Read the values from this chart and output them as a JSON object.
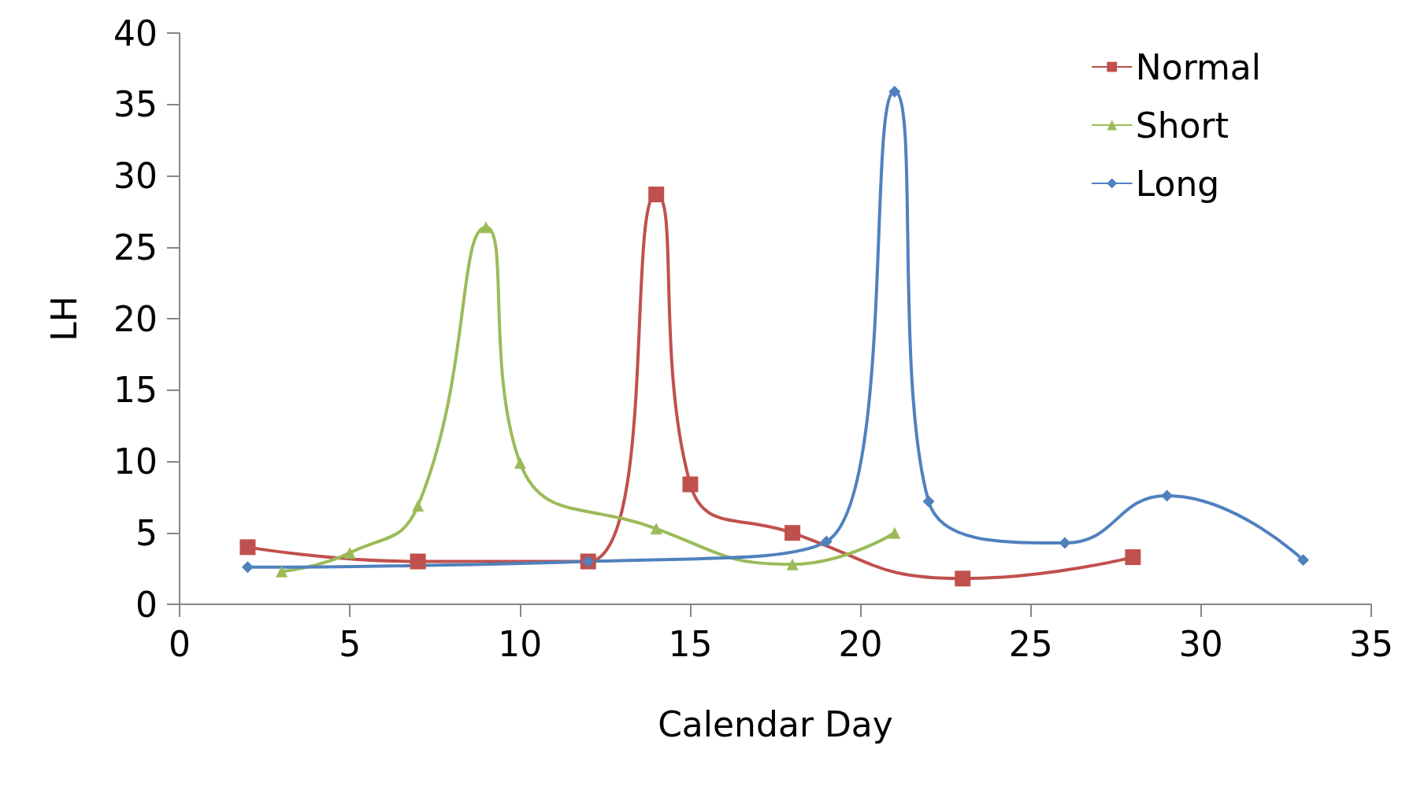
{
  "chart_data": {
    "type": "line",
    "xlabel": "Calendar Day",
    "ylabel": "LH",
    "xlim": [
      0,
      35
    ],
    "xticks": [
      0,
      5,
      10,
      15,
      20,
      25,
      30,
      35
    ],
    "ylim": [
      0,
      40
    ],
    "yticks": [
      0,
      5,
      10,
      15,
      20,
      25,
      30,
      35,
      40
    ],
    "grid": false,
    "legend": "top right",
    "line_style": "solid",
    "series": [
      {
        "name": "Normal",
        "color": "#c0504d",
        "marker": "square",
        "x": [
          2,
          7,
          12,
          14,
          15,
          18,
          23,
          28
        ],
        "values": [
          4,
          3,
          3,
          28.7,
          8.4,
          5,
          1.8,
          3.3
        ]
      },
      {
        "name": "Short",
        "color": "#9bbb59",
        "marker": "triangle",
        "x": [
          3,
          5,
          7,
          9,
          10,
          14,
          18,
          21
        ],
        "values": [
          2.3,
          3.6,
          6.9,
          26.4,
          9.9,
          5.3,
          2.8,
          5
        ]
      },
      {
        "name": "Long",
        "color": "#4f81bd",
        "marker": "diamond",
        "x": [
          2,
          12,
          19,
          21,
          22,
          26,
          29,
          33
        ],
        "values": [
          2.6,
          3,
          4.4,
          35.9,
          7.2,
          4.3,
          7.6,
          3.1
        ]
      }
    ]
  }
}
